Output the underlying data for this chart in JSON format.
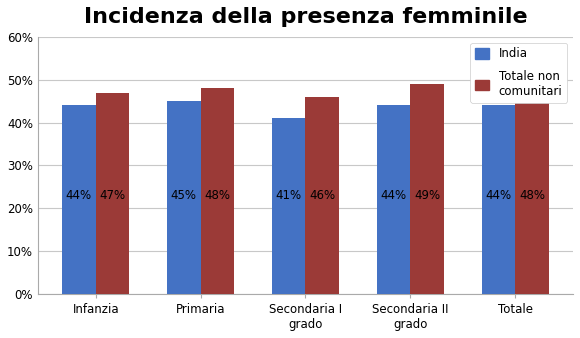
{
  "title": "Incidenza della presenza femminile",
  "categories": [
    "Infanzia",
    "Primaria",
    "Secondaria I\ngrado",
    "Secondaria II\ngrado",
    "Totale"
  ],
  "series": {
    "India": [
      0.44,
      0.45,
      0.41,
      0.44,
      0.44
    ],
    "Totale non\ncomunitari": [
      0.47,
      0.48,
      0.46,
      0.49,
      0.48
    ]
  },
  "labels": {
    "India": [
      "44%",
      "45%",
      "41%",
      "44%",
      "44%"
    ],
    "Totale non\ncomunitari": [
      "47%",
      "48%",
      "46%",
      "49%",
      "48%"
    ]
  },
  "colors": {
    "India": "#4472C4",
    "Totale non\ncomunitari": "#9B3A37"
  },
  "ylim": [
    0,
    0.6
  ],
  "yticks": [
    0.0,
    0.1,
    0.2,
    0.3,
    0.4,
    0.5,
    0.6
  ],
  "ytick_labels": [
    "0%",
    "10%",
    "20%",
    "30%",
    "40%",
    "50%",
    "60%"
  ],
  "bar_width": 0.32,
  "title_fontsize": 16,
  "label_fontsize": 8.5,
  "tick_fontsize": 8.5,
  "legend_fontsize": 8.5,
  "background_color": "#FFFFFF",
  "grid_color": "#C8C8C8",
  "border_color": "#AAAAAA"
}
